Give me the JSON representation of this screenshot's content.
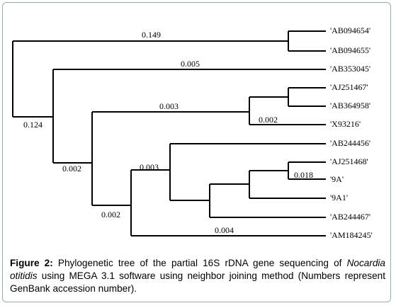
{
  "leaves": [
    "'AB094654'",
    "'AB094655'",
    "'AB353045'",
    "'AJ251467'",
    "'AB364958'",
    "'X93216'",
    "'AB244456'",
    "'AJ251468'",
    "'9A'",
    "'9A1'",
    "'AB244467'",
    "'AM184245'"
  ],
  "branch_labels": [
    "0.149",
    "0.005",
    "0.124",
    "0.003",
    "0.002",
    "0.002",
    "0.003",
    "0.018",
    "0.002",
    "0.004"
  ],
  "caption": {
    "label": "Figure 2:",
    "text_1": "Phylogenetic tree of the partial 16S rDNA gene sequencing of",
    "species": "Nocardia otitidis",
    "text_2": "using MEGA 3.1 software using neighbor joining method (Numbers represent GenBank accession number)."
  }
}
